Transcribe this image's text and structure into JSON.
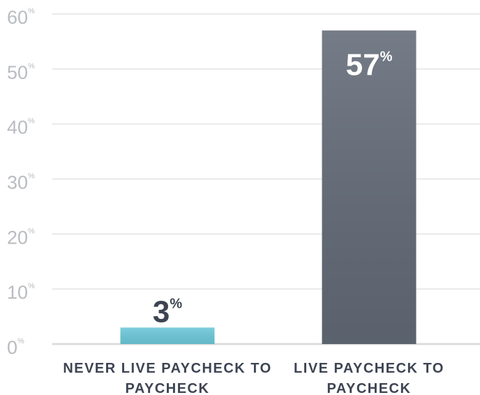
{
  "chart_data": {
    "type": "bar",
    "categories": [
      "NEVER LIVE PAYCHECK TO PAYCHECK",
      "LIVE PAYCHECK TO PAYCHECK"
    ],
    "values": [
      3,
      57
    ],
    "value_labels": [
      "3%",
      "57%"
    ],
    "colors": [
      "#6cc8d9",
      "#626a77"
    ],
    "ylim": [
      0,
      60
    ],
    "yticks": [
      {
        "value": 0,
        "label": "0%"
      },
      {
        "value": 10,
        "label": "10%"
      },
      {
        "value": 20,
        "label": "20%"
      },
      {
        "value": 30,
        "label": "30%"
      },
      {
        "value": 40,
        "label": "40%"
      },
      {
        "value": 50,
        "label": "50%"
      },
      {
        "value": 60,
        "label": "60%"
      }
    ],
    "grid": true
  }
}
